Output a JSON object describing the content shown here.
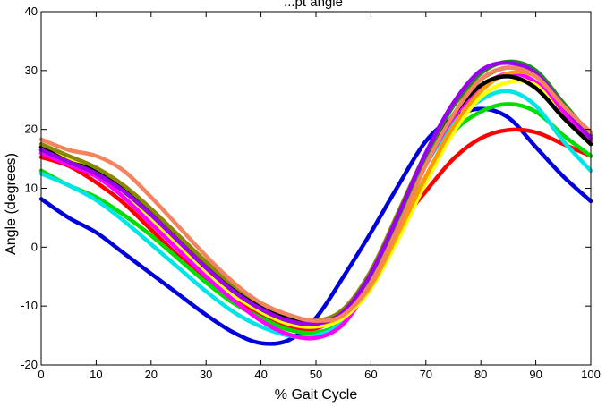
{
  "chart_data": {
    "type": "line",
    "title": "...pt angle",
    "xlabel": "% Gait Cycle",
    "ylabel": "Angle (degrees)",
    "xlim": [
      0,
      100
    ],
    "ylim": [
      -20,
      40
    ],
    "xticks": [
      0,
      10,
      20,
      30,
      40,
      50,
      60,
      70,
      80,
      90,
      100
    ],
    "yticks": [
      -20,
      -10,
      0,
      10,
      20,
      30,
      40
    ],
    "grid": false,
    "legend": "none",
    "x": [
      0,
      5,
      10,
      15,
      20,
      25,
      30,
      35,
      40,
      45,
      50,
      55,
      60,
      65,
      70,
      75,
      80,
      85,
      90,
      95,
      100
    ],
    "series": [
      {
        "color": "#0000dd",
        "values": [
          8.2,
          5.0,
          2.5,
          -1.0,
          -4.5,
          -8.0,
          -11.5,
          -14.5,
          -16.3,
          -15.8,
          -12.0,
          -5.0,
          2.5,
          10.5,
          18.0,
          22.0,
          23.5,
          22.0,
          17.0,
          12.0,
          7.8
        ]
      },
      {
        "color": "#ff0000",
        "values": [
          15.3,
          13.8,
          11.0,
          7.5,
          3.0,
          -1.5,
          -5.5,
          -9.0,
          -11.5,
          -13.5,
          -13.8,
          -11.0,
          -4.5,
          3.5,
          9.5,
          15.0,
          18.5,
          19.9,
          19.5,
          17.5,
          15.5
        ]
      },
      {
        "color": "#00dd00",
        "values": [
          13.0,
          10.5,
          8.5,
          5.5,
          2.0,
          -2.0,
          -6.0,
          -9.5,
          -12.0,
          -14.0,
          -14.5,
          -12.5,
          -6.0,
          3.0,
          12.0,
          19.5,
          23.0,
          24.3,
          23.0,
          19.0,
          15.5
        ]
      },
      {
        "color": "#00e5e5",
        "values": [
          12.5,
          10.5,
          8.0,
          4.5,
          0.5,
          -3.5,
          -7.5,
          -11.0,
          -13.5,
          -15.0,
          -15.0,
          -12.5,
          -5.0,
          5.0,
          14.0,
          21.0,
          25.0,
          26.5,
          24.0,
          18.0,
          13.0
        ]
      },
      {
        "color": "#ff00ff",
        "values": [
          16.0,
          14.0,
          12.0,
          8.5,
          4.0,
          -0.5,
          -5.0,
          -9.0,
          -12.5,
          -14.8,
          -15.4,
          -13.0,
          -6.0,
          4.0,
          14.0,
          22.0,
          27.0,
          29.5,
          28.0,
          23.0,
          18.0
        ]
      },
      {
        "color": "#ffff00",
        "values": [
          17.0,
          15.0,
          13.0,
          9.5,
          5.0,
          0.5,
          -4.0,
          -8.0,
          -11.0,
          -13.0,
          -13.5,
          -12.0,
          -7.0,
          1.5,
          11.0,
          19.5,
          25.5,
          28.0,
          27.5,
          22.0,
          17.5
        ]
      },
      {
        "color": "#ff9900",
        "values": [
          16.5,
          14.5,
          12.5,
          9.5,
          5.5,
          1.0,
          -3.5,
          -7.5,
          -10.5,
          -12.5,
          -13.0,
          -11.5,
          -6.5,
          2.5,
          12.0,
          20.5,
          26.5,
          29.5,
          29.0,
          24.0,
          18.5
        ]
      },
      {
        "color": "#000000",
        "values": [
          17.0,
          14.5,
          13.0,
          10.0,
          6.0,
          1.5,
          -3.0,
          -7.0,
          -10.0,
          -12.0,
          -12.8,
          -11.0,
          -5.0,
          4.5,
          14.5,
          22.5,
          27.5,
          29.0,
          27.0,
          22.0,
          17.5
        ]
      },
      {
        "color": "#888800",
        "values": [
          17.5,
          15.5,
          13.5,
          10.5,
          6.5,
          2.0,
          -2.5,
          -6.5,
          -9.5,
          -11.5,
          -12.5,
          -10.5,
          -4.0,
          6.0,
          16.0,
          24.0,
          28.5,
          30.5,
          29.0,
          24.0,
          19.0
        ]
      },
      {
        "color": "#228822",
        "values": [
          16.5,
          14.5,
          12.5,
          9.5,
          5.5,
          1.0,
          -3.5,
          -7.5,
          -10.5,
          -12.5,
          -13.0,
          -11.0,
          -5.0,
          5.0,
          15.5,
          24.0,
          29.5,
          31.5,
          30.0,
          24.5,
          19.0
        ]
      },
      {
        "color": "#9900ee",
        "values": [
          16.5,
          14.5,
          12.5,
          9.5,
          5.5,
          1.0,
          -3.5,
          -7.5,
          -10.5,
          -12.5,
          -13.0,
          -11.0,
          -4.5,
          5.5,
          16.0,
          24.5,
          30.0,
          31.3,
          29.5,
          24.0,
          18.5
        ]
      },
      {
        "color": "#f4845f",
        "values": [
          18.3,
          16.5,
          15.5,
          13.0,
          8.5,
          3.5,
          -1.5,
          -6.0,
          -9.5,
          -11.5,
          -12.5,
          -11.5,
          -6.0,
          3.5,
          14.0,
          22.5,
          28.5,
          30.5,
          29.0,
          24.0,
          19.5
        ]
      }
    ]
  }
}
